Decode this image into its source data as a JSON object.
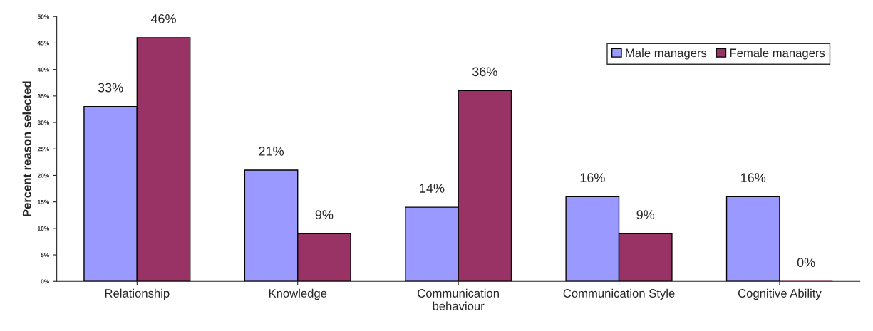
{
  "chart_data": {
    "type": "bar",
    "ylabel": "Percent reason selected",
    "categories": [
      "Relationship",
      "Knowledge",
      "Communication\nbehaviour",
      "Communication Style",
      "Cognitive Ability"
    ],
    "series": [
      {
        "name": "Male managers",
        "color": "#9999ff",
        "values": [
          33,
          21,
          14,
          16,
          16
        ],
        "value_labels": [
          "33%",
          "21%",
          "14%",
          "16%",
          "16%"
        ]
      },
      {
        "name": "Female managers",
        "color": "#993366",
        "values": [
          46,
          9,
          36,
          9,
          0
        ],
        "value_labels": [
          "46%",
          "9%",
          "36%",
          "9%",
          "0%"
        ]
      }
    ],
    "ylim": [
      0,
      50
    ],
    "yticks": [
      {
        "value": 0,
        "label": "0%"
      },
      {
        "value": 5,
        "label": "5%"
      },
      {
        "value": 10,
        "label": "10%"
      },
      {
        "value": 15,
        "label": "15%"
      },
      {
        "value": 20,
        "label": "20%"
      },
      {
        "value": 25,
        "label": "25%"
      },
      {
        "value": 30,
        "label": "30%"
      },
      {
        "value": 35,
        "label": "35%"
      },
      {
        "value": 40,
        "label": "40%"
      },
      {
        "value": 45,
        "label": "45%"
      },
      {
        "value": 50,
        "label": "50%"
      }
    ],
    "grid": false,
    "legend": "top right"
  }
}
